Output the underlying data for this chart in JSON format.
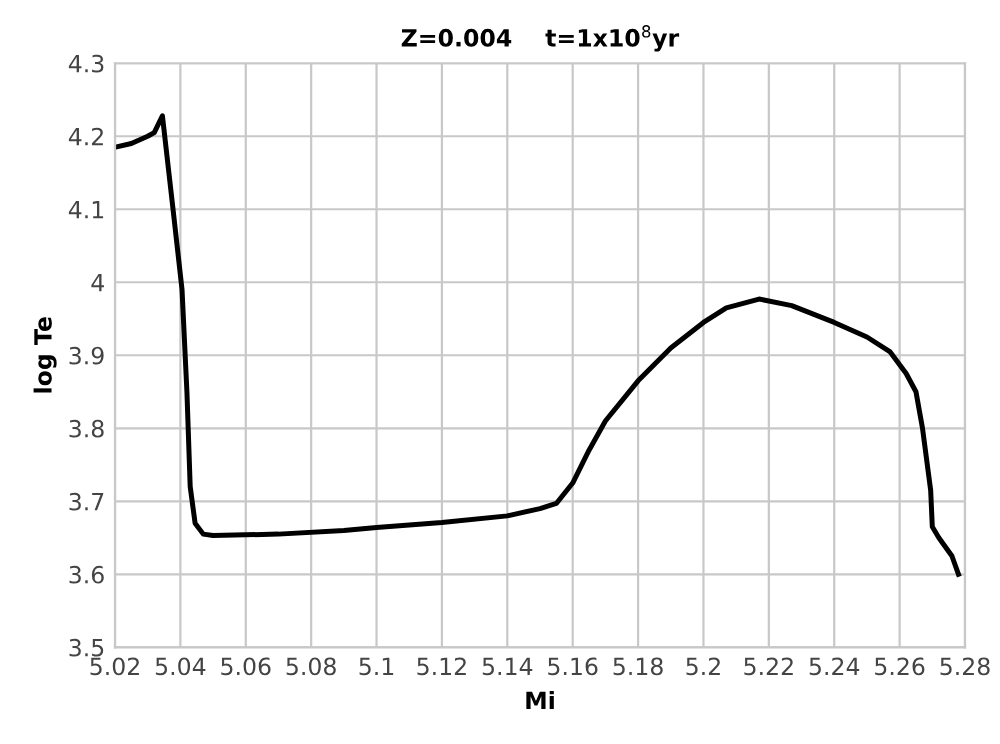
{
  "chart_data": {
    "type": "line",
    "title": "Z=0.004    t=1x10$^{8}$yr",
    "xlabel": "Mi",
    "ylabel": "log Te",
    "x": [
      5.02,
      5.025,
      5.03,
      5.032,
      5.0345,
      5.0375,
      5.0405,
      5.042,
      5.043,
      5.0445,
      5.047,
      5.05,
      5.07,
      5.09,
      5.1,
      5.12,
      5.14,
      5.15,
      5.155,
      5.16,
      5.165,
      5.17,
      5.18,
      5.19,
      5.2,
      5.207,
      5.217,
      5.227,
      5.24,
      5.25,
      5.257,
      5.262,
      5.265,
      5.267,
      5.2695,
      5.27,
      5.272,
      5.276,
      5.278
    ],
    "series": [
      {
        "color": "#000000",
        "values": [
          4.185,
          4.19,
          4.2,
          4.205,
          4.228,
          4.11,
          3.99,
          3.85,
          3.72,
          3.67,
          3.655,
          3.653,
          3.655,
          3.66,
          3.664,
          3.671,
          3.68,
          3.69,
          3.697,
          3.725,
          3.77,
          3.81,
          3.865,
          3.91,
          3.945,
          3.965,
          3.977,
          3.968,
          3.945,
          3.925,
          3.905,
          3.875,
          3.85,
          3.8,
          3.715,
          3.665,
          3.65,
          3.625,
          3.6
        ]
      }
    ],
    "xlim": [
      5.02,
      5.28
    ],
    "xticks": [
      5.02,
      5.04,
      5.06,
      5.08,
      5.1,
      5.12,
      5.14,
      5.16,
      5.18,
      5.2,
      5.22,
      5.24,
      5.26,
      5.28
    ],
    "ylim": [
      3.5,
      4.3
    ],
    "yticks": [
      3.5,
      3.6,
      3.7,
      3.8,
      3.9,
      4,
      4.1,
      4.2,
      4.3
    ],
    "grid": true,
    "legend": false,
    "marker": "none",
    "line_style": "solid"
  }
}
